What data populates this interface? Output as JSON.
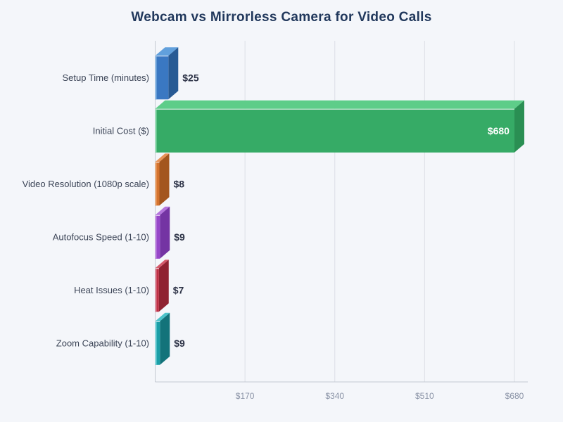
{
  "chart_data": {
    "type": "bar",
    "orientation": "horizontal",
    "title": "Webcam vs Mirrorless Camera for Video Calls",
    "categories": [
      "Setup Time (minutes)",
      "Initial Cost ($)",
      "Video Resolution (1080p scale)",
      "Autofocus Speed (1-10)",
      "Heat Issues (1-10)",
      "Zoom Capability (1-10)"
    ],
    "values": [
      25,
      680,
      8,
      9,
      7,
      9
    ],
    "value_labels": [
      "$25",
      "$680",
      "$8",
      "$9",
      "$7",
      "$9"
    ],
    "xlim": [
      0,
      680
    ],
    "tick_values": [
      170,
      340,
      510,
      680
    ],
    "tick_labels": [
      "$170",
      "$340",
      "$510",
      "$680"
    ],
    "grid": "vertical",
    "legend": "none",
    "bar_style": "3d",
    "bar_colors": [
      {
        "front": "#3a78c2",
        "top": "#61a0dc",
        "side": "#275a94",
        "edge": "#85b9e8"
      },
      {
        "front": "#36ab66",
        "top": "#5ecd89",
        "side": "#2a8f53",
        "edge": "#8fe0b0"
      },
      {
        "front": "#d4732e",
        "top": "#e89356",
        "side": "#a3561e",
        "edge": "#f0a469"
      },
      {
        "front": "#9747c9",
        "top": "#b475dd",
        "side": "#7434a3",
        "edge": "#c28ae3"
      },
      {
        "front": "#bf2f44",
        "top": "#d45a6b",
        "side": "#8f2231",
        "edge": "#de8191"
      },
      {
        "front": "#1ba0a8",
        "top": "#4cc3ca",
        "side": "#13737a",
        "edge": "#7ad9de"
      }
    ]
  },
  "style": {
    "background": "#f4f6fa",
    "title_color": "#21385c",
    "category_color": "#3c4557",
    "value_color": "#2c3246",
    "tick_color": "#8a93a6",
    "grid_color": "#dcdfe6",
    "axis_color": "#c4c9d2",
    "inside_label_color": "#ffffff"
  }
}
